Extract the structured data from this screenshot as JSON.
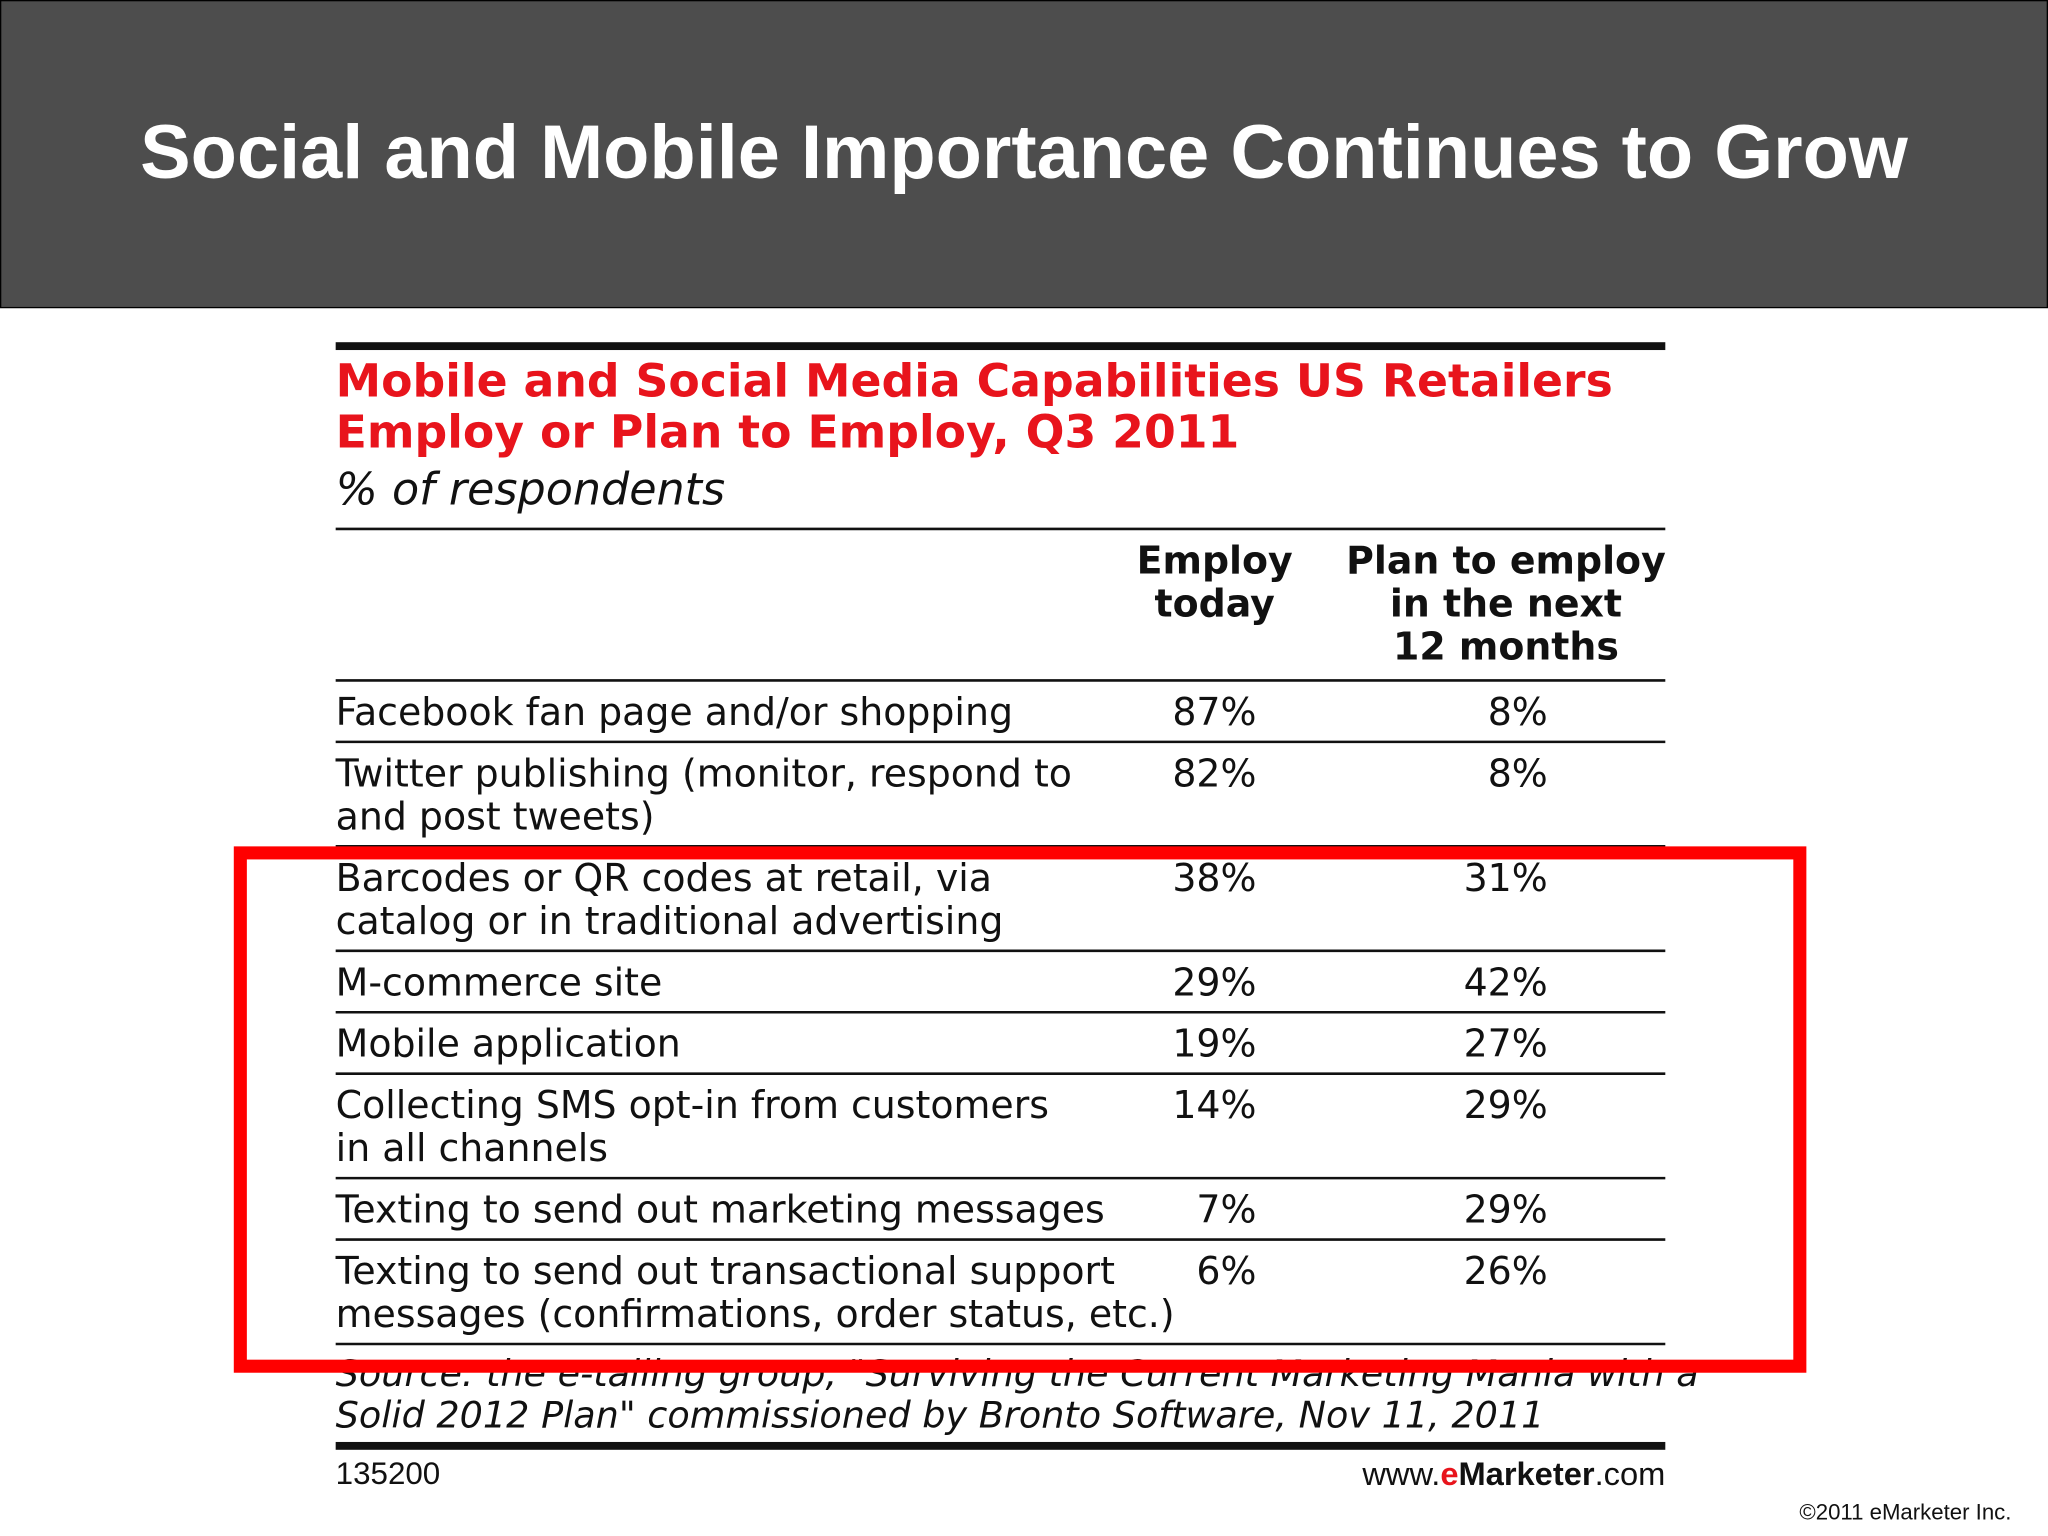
{
  "header": {
    "title": "Social and Mobile Importance Continues to Grow"
  },
  "table": {
    "title": [
      "Mobile and Social Media Capabilities US Retailers",
      "Employ or Plan to Employ, Q3 2011"
    ],
    "subtitle": "% of respondents",
    "columns": [
      [
        "Employ",
        "today"
      ],
      [
        "Plan to employ",
        "in the next",
        "12 months"
      ]
    ],
    "rows": [
      {
        "label": [
          "Facebook fan page and/or shopping"
        ],
        "values": [
          "87%",
          "8%"
        ]
      },
      {
        "label": [
          "Twitter publishing (monitor, respond to",
          "and post tweets)"
        ],
        "values": [
          "82%",
          "8%"
        ]
      },
      {
        "label": [
          "Barcodes or QR codes at retail, via",
          "catalog or in traditional advertising"
        ],
        "values": [
          "38%",
          "31%"
        ]
      },
      {
        "label": [
          "M-commerce site"
        ],
        "values": [
          "29%",
          "42%"
        ]
      },
      {
        "label": [
          "Mobile application"
        ],
        "values": [
          "19%",
          "27%"
        ]
      },
      {
        "label": [
          "Collecting SMS opt-in from customers",
          "in all channels"
        ],
        "values": [
          "14%",
          "29%"
        ]
      },
      {
        "label": [
          "Texting to send out marketing messages"
        ],
        "values": [
          "7%",
          "29%"
        ]
      },
      {
        "label": [
          "Texting to send out transactional support",
          "messages (confirmations, order status, etc.)"
        ],
        "values": [
          "6%",
          "26%"
        ]
      }
    ],
    "source": [
      "Source: the e-tailing group, \"Surviving the Current Marketing Mania with a",
      "Solid 2012 Plan\" commissioned by Bronto Software, Nov 11, 2011"
    ],
    "id": "135200",
    "brand": [
      "www.",
      "e",
      "Marketer",
      ".com"
    ]
  },
  "copyright": "©2011 eMarketer Inc."
}
